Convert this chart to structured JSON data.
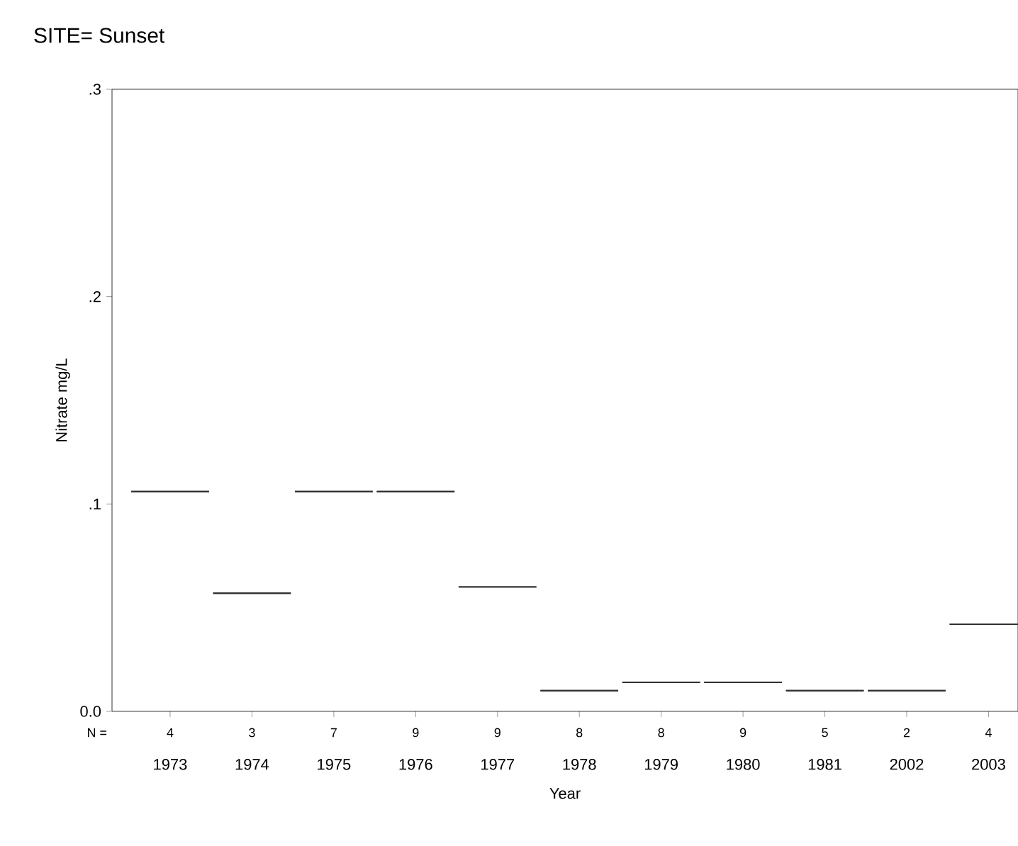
{
  "chart_data": {
    "type": "box",
    "title": "SITE= Sunset",
    "xlabel": "Year",
    "ylabel": "Nitrate mg/L",
    "categories": [
      "1973",
      "1974",
      "1975",
      "1976",
      "1977",
      "1978",
      "1979",
      "1980",
      "1981",
      "2002",
      "2003"
    ],
    "boxes": [
      {
        "low": 0.106,
        "q1": 0.106,
        "median": 0.106,
        "q3": 0.106,
        "high": 0.106
      },
      {
        "low": 0.057,
        "q1": 0.057,
        "median": 0.057,
        "q3": 0.057,
        "high": 0.057
      },
      {
        "low": 0.106,
        "q1": 0.106,
        "median": 0.106,
        "q3": 0.106,
        "high": 0.106
      },
      {
        "low": 0.106,
        "q1": 0.106,
        "median": 0.106,
        "q3": 0.106,
        "high": 0.106
      },
      {
        "low": 0.06,
        "q1": 0.06,
        "median": 0.06,
        "q3": 0.06,
        "high": 0.06
      },
      {
        "low": 0.01,
        "q1": 0.01,
        "median": 0.01,
        "q3": 0.01,
        "high": 0.01
      },
      {
        "low": 0.014,
        "q1": 0.014,
        "median": 0.014,
        "q3": 0.014,
        "high": 0.014
      },
      {
        "low": 0.014,
        "q1": 0.014,
        "median": 0.014,
        "q3": 0.014,
        "high": 0.014
      },
      {
        "low": 0.01,
        "q1": 0.01,
        "median": 0.01,
        "q3": 0.01,
        "high": 0.01
      },
      {
        "low": 0.01,
        "q1": 0.01,
        "median": 0.01,
        "q3": 0.01,
        "high": 0.01
      },
      {
        "low": 0.042,
        "q1": 0.042,
        "median": 0.042,
        "q3": 0.042,
        "high": 0.042
      }
    ],
    "color": "#303030",
    "ylim": [
      0,
      0.3
    ],
    "yticks": [
      {
        "value": 0,
        "label": "0.0"
      },
      {
        "value": 0.1,
        "label": ".1"
      },
      {
        "value": 0.2,
        "label": ".2"
      },
      {
        "value": 0.3,
        "label": ".3"
      }
    ],
    "grid": false,
    "annotations": [
      "N =",
      "4",
      "3",
      "7",
      "9",
      "9",
      "8",
      "8",
      "9",
      "5",
      "2",
      "4"
    ]
  }
}
